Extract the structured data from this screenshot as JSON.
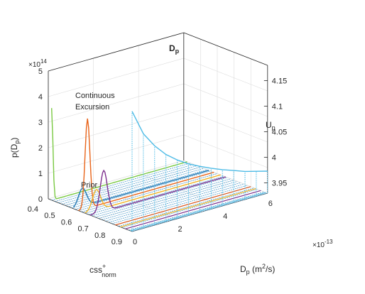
{
  "chart_data": {
    "type": "line",
    "title": "D",
    "title_sub": "p",
    "ylabel": {
      "main": "p(D",
      "sub": "p",
      "tail": ")"
    },
    "xlabel": {
      "main": "css",
      "sup": "+",
      "sub": "norm"
    },
    "zlabel": {
      "main": "D",
      "sub": "p",
      "tail": " (m",
      "sup": "2",
      "tail2": "/s)"
    },
    "y_multiplier": {
      "base": "×10",
      "exp": "14"
    },
    "z_multiplier": {
      "base": "×10",
      "exp": "-13"
    },
    "right_axis_label": {
      "main": "U",
      "sub": "p"
    },
    "y_ticks": [
      "0",
      "1",
      "2",
      "3",
      "4",
      "5"
    ],
    "x_ticks": [
      "0.4",
      "0.5",
      "0.6",
      "0.7",
      "0.8",
      "0.9"
    ],
    "z_ticks": [
      "0",
      "2",
      "4",
      "6"
    ],
    "right_ticks": [
      "3.95",
      "4",
      "4.05",
      "4.1",
      "4.15"
    ],
    "ylim": [
      0,
      5
    ],
    "xlim": [
      0.4,
      0.9
    ],
    "zlim": [
      0,
      6
    ],
    "right_lim": [
      3.93,
      4.18
    ],
    "grid": true,
    "annotations": [
      {
        "text": "Continuous",
        "id": "cont1"
      },
      {
        "text": "Excursion",
        "id": "cont2"
      },
      {
        "text": "Prior",
        "id": "prior"
      }
    ],
    "series": [
      {
        "css": 0.42,
        "color": "#7ac943",
        "peak_z": 0.0,
        "peak_y": 3.6,
        "width": 0.08,
        "baseline": true
      },
      {
        "css": 0.55,
        "color": "#1f77b4",
        "peak_z": 0.4,
        "peak_y": 0.7,
        "width": 0.25
      },
      {
        "css": 0.58,
        "color": "#e8641a",
        "peak_z": 0.4,
        "peak_y": 3.5,
        "width": 0.15
      },
      {
        "css": 0.62,
        "color": "#f0b323",
        "peak_z": 0.5,
        "peak_y": 0.8,
        "width": 0.25
      },
      {
        "css": 0.65,
        "color": "#7e2f8e",
        "peak_z": 0.6,
        "peak_y": 1.6,
        "width": 0.22
      }
    ],
    "up_curve": {
      "color": "#4dbbe6",
      "z": [
        0.0,
        0.5,
        1.0,
        1.5,
        2.0,
        2.5,
        3.0,
        3.5,
        4.0,
        4.5,
        5.0,
        5.5,
        6.0
      ],
      "u": [
        4.165,
        4.115,
        4.085,
        4.062,
        4.045,
        4.031,
        4.02,
        4.01,
        4.001,
        3.993,
        3.985,
        3.979,
        3.973
      ]
    }
  }
}
